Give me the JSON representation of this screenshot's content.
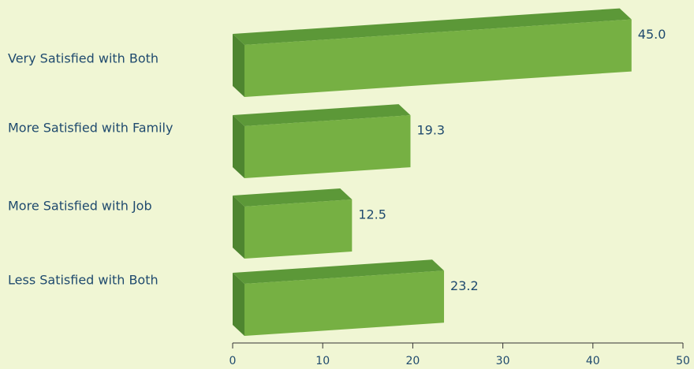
{
  "chart_data": {
    "type": "bar3d",
    "categories": [
      "Very Satisfied with Both",
      "More Satisfied with Family",
      "More Satisfied with Job",
      "Less Satisfied with Both"
    ],
    "values": [
      45.0,
      19.3,
      12.5,
      23.2
    ],
    "value_labels": [
      "45.0",
      "19.3",
      "12.5",
      "23.2"
    ],
    "color": "#76b043",
    "xlim": [
      0,
      50
    ],
    "xticks": [
      0,
      10,
      20,
      30,
      40,
      50
    ]
  }
}
